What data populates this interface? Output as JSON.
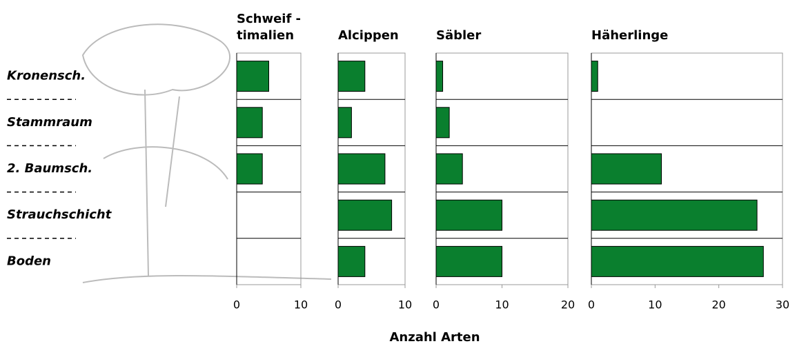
{
  "chart_data": [
    {
      "type": "bar",
      "orientation": "horizontal",
      "title": [
        "Schweif -",
        "timalien"
      ],
      "categories": [
        "Kronensch.",
        "Stammraum",
        "2. Baumsch.",
        "Strauchschicht",
        "Boden"
      ],
      "xlabel": "Anzahl Arten",
      "values": [
        5,
        4,
        4,
        null,
        null
      ],
      "color": "#0a7f2e",
      "xlim": [
        0,
        10
      ],
      "xticks": [
        0,
        10
      ]
    },
    {
      "type": "bar",
      "orientation": "horizontal",
      "title": [
        "Alcippen"
      ],
      "values": [
        4,
        2,
        7,
        8,
        4
      ],
      "color": "#0a7f2e",
      "xlim": [
        0,
        10
      ],
      "xticks": [
        0,
        10
      ]
    },
    {
      "type": "bar",
      "orientation": "horizontal",
      "title": [
        "Säbler"
      ],
      "values": [
        1,
        2,
        4,
        10,
        10
      ],
      "color": "#0a7f2e",
      "xlim": [
        0,
        20
      ],
      "xticks": [
        0,
        10,
        20
      ]
    },
    {
      "type": "bar",
      "orientation": "horizontal",
      "title": [
        "Häherlinge"
      ],
      "values": [
        1,
        null,
        11,
        26,
        27
      ],
      "color": "#0a7f2e",
      "xlim": [
        0,
        30
      ],
      "xticks": [
        0,
        10,
        20,
        30
      ]
    }
  ]
}
